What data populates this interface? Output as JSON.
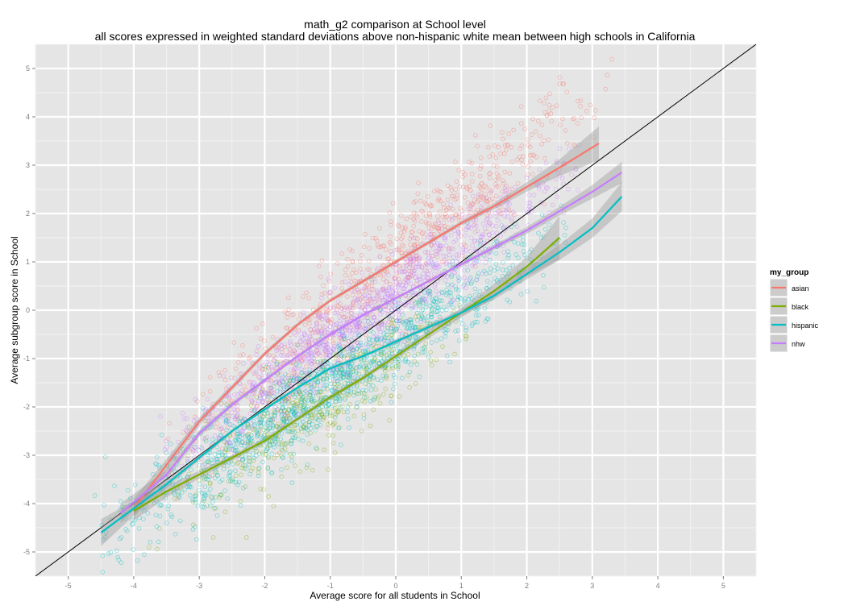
{
  "chart_data": {
    "type": "scatter",
    "title": "math_g2 comparison at School level",
    "subtitle": "all scores expressed in weighted standard deviations above non-hispanic white mean between high schools in California",
    "xlabel": "Average score for all students in School",
    "ylabel": "Average subgroup score in School",
    "xlim": [
      -5.5,
      5.5
    ],
    "ylim": [
      -5.5,
      5.5
    ],
    "xticks": [
      "-5",
      "-4",
      "-3",
      "-2",
      "-1",
      "0",
      "1",
      "2",
      "3",
      "4",
      "5"
    ],
    "yticks": [
      "-5",
      "-4",
      "-3",
      "-2",
      "-1",
      "0",
      "1",
      "2",
      "3",
      "4",
      "5"
    ],
    "grid": true,
    "reference_line": "y = x",
    "legend": {
      "title": "my_group",
      "placement": "right"
    },
    "series": [
      {
        "name": "asian",
        "color": "#F8766D",
        "smooth": [
          [
            -4.0,
            -4.1
          ],
          [
            -3.5,
            -3.2
          ],
          [
            -3.0,
            -2.3
          ],
          [
            -2.5,
            -1.6
          ],
          [
            -2.0,
            -0.9
          ],
          [
            -1.5,
            -0.3
          ],
          [
            -1.0,
            0.2
          ],
          [
            -0.5,
            0.6
          ],
          [
            0.0,
            1.0
          ],
          [
            0.5,
            1.4
          ],
          [
            1.0,
            1.8
          ],
          [
            1.5,
            2.15
          ],
          [
            2.0,
            2.55
          ],
          [
            2.5,
            2.95
          ],
          [
            3.1,
            3.45
          ]
        ],
        "band_halfwidth": [
          0.2,
          0.12,
          0.08,
          0.06,
          0.05,
          0.04,
          0.04,
          0.04,
          0.04,
          0.04,
          0.05,
          0.06,
          0.1,
          0.17,
          0.35
        ],
        "cloud": {
          "x_range": [
            -3.2,
            3.0
          ],
          "slope": 1.15,
          "intercept": 0.95,
          "spread": 0.55,
          "count": 850
        }
      },
      {
        "name": "black",
        "color": "#7CAE00",
        "smooth": [
          [
            -4.0,
            -4.15
          ],
          [
            -3.5,
            -3.75
          ],
          [
            -3.0,
            -3.4
          ],
          [
            -2.5,
            -3.05
          ],
          [
            -2.0,
            -2.7
          ],
          [
            -1.5,
            -2.25
          ],
          [
            -1.0,
            -1.8
          ],
          [
            -0.5,
            -1.4
          ],
          [
            0.0,
            -0.95
          ],
          [
            0.5,
            -0.5
          ],
          [
            1.0,
            -0.05
          ],
          [
            1.5,
            0.4
          ],
          [
            2.0,
            0.9
          ],
          [
            2.5,
            1.5
          ]
        ],
        "band_halfwidth": [
          0.2,
          0.12,
          0.08,
          0.06,
          0.05,
          0.05,
          0.05,
          0.05,
          0.06,
          0.08,
          0.1,
          0.14,
          0.2,
          0.45
        ],
        "cloud": {
          "x_range": [
            -3.5,
            0.8
          ],
          "slope": 0.82,
          "intercept": -0.95,
          "spread": 0.5,
          "count": 500
        }
      },
      {
        "name": "hispanic",
        "color": "#00BFC4",
        "smooth": [
          [
            -4.5,
            -4.6
          ],
          [
            -4.0,
            -4.1
          ],
          [
            -3.5,
            -3.6
          ],
          [
            -3.0,
            -3.05
          ],
          [
            -2.5,
            -2.5
          ],
          [
            -2.0,
            -2.05
          ],
          [
            -1.5,
            -1.6
          ],
          [
            -1.0,
            -1.2
          ],
          [
            -0.5,
            -0.95
          ],
          [
            0.0,
            -0.65
          ],
          [
            0.5,
            -0.35
          ],
          [
            1.0,
            -0.05
          ],
          [
            1.5,
            0.3
          ],
          [
            2.0,
            0.75
          ],
          [
            2.5,
            1.2
          ],
          [
            3.0,
            1.7
          ],
          [
            3.45,
            2.35
          ]
        ],
        "band_halfwidth": [
          0.28,
          0.15,
          0.08,
          0.05,
          0.04,
          0.03,
          0.03,
          0.03,
          0.03,
          0.04,
          0.05,
          0.06,
          0.08,
          0.11,
          0.16,
          0.2,
          0.3
        ],
        "cloud": {
          "x_range": [
            -4.3,
            2.3
          ],
          "slope": 0.9,
          "intercept": -0.65,
          "spread": 0.45,
          "count": 1300
        }
      },
      {
        "name": "nhw",
        "color": "#C77CFF",
        "smooth": [
          [
            -4.2,
            -4.2
          ],
          [
            -3.5,
            -3.4
          ],
          [
            -3.0,
            -2.55
          ],
          [
            -2.5,
            -1.95
          ],
          [
            -2.0,
            -1.45
          ],
          [
            -1.5,
            -0.95
          ],
          [
            -1.0,
            -0.5
          ],
          [
            -0.5,
            -0.1
          ],
          [
            0.0,
            0.25
          ],
          [
            0.5,
            0.6
          ],
          [
            1.0,
            0.95
          ],
          [
            1.5,
            1.3
          ],
          [
            2.0,
            1.65
          ],
          [
            2.5,
            2.05
          ],
          [
            3.0,
            2.45
          ],
          [
            3.45,
            2.85
          ]
        ],
        "band_halfwidth": [
          0.2,
          0.1,
          0.07,
          0.05,
          0.04,
          0.03,
          0.03,
          0.03,
          0.03,
          0.03,
          0.04,
          0.05,
          0.07,
          0.09,
          0.14,
          0.22
        ],
        "cloud": {
          "x_range": [
            -3.3,
            2.5
          ],
          "slope": 0.95,
          "intercept": 0.3,
          "spread": 0.4,
          "count": 1100
        }
      }
    ]
  }
}
